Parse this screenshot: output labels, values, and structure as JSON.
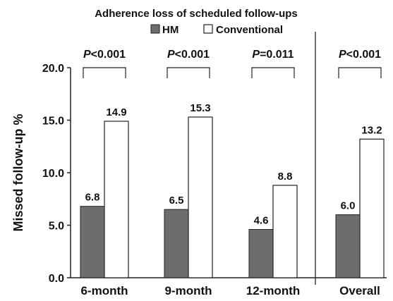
{
  "chart_data": {
    "type": "bar",
    "title": "Adherence loss of scheduled follow-ups",
    "ylabel": "Missed follow-up %",
    "xlabel": "",
    "ylim": [
      0,
      20
    ],
    "yticks": [
      "0.0",
      "5.0",
      "10.0",
      "15.0",
      "20.0"
    ],
    "categories": [
      "6-month",
      "9-month",
      "12-month",
      "Overall"
    ],
    "series": [
      {
        "name": "HM",
        "color": "#6d6d6d",
        "values": [
          6.8,
          6.5,
          4.6,
          6.0
        ],
        "labels": [
          "6.8",
          "6.5",
          "4.6",
          "6.0"
        ]
      },
      {
        "name": "Conventional",
        "color": "#ffffff",
        "values": [
          14.9,
          15.3,
          8.8,
          13.2
        ],
        "labels": [
          "14.9",
          "15.3",
          "8.8",
          "13.2"
        ]
      }
    ],
    "p_values": [
      {
        "prefix": "P",
        "rest": "<0.001"
      },
      {
        "prefix": "P",
        "rest": "<0.001"
      },
      {
        "prefix": "P",
        "rest": "=0.011"
      },
      {
        "prefix": "P",
        "rest": "<0.001"
      }
    ],
    "legend": {
      "placement": "top",
      "entries": [
        "HM",
        "Conventional"
      ]
    },
    "grid": false,
    "separator_before_category": "Overall"
  }
}
